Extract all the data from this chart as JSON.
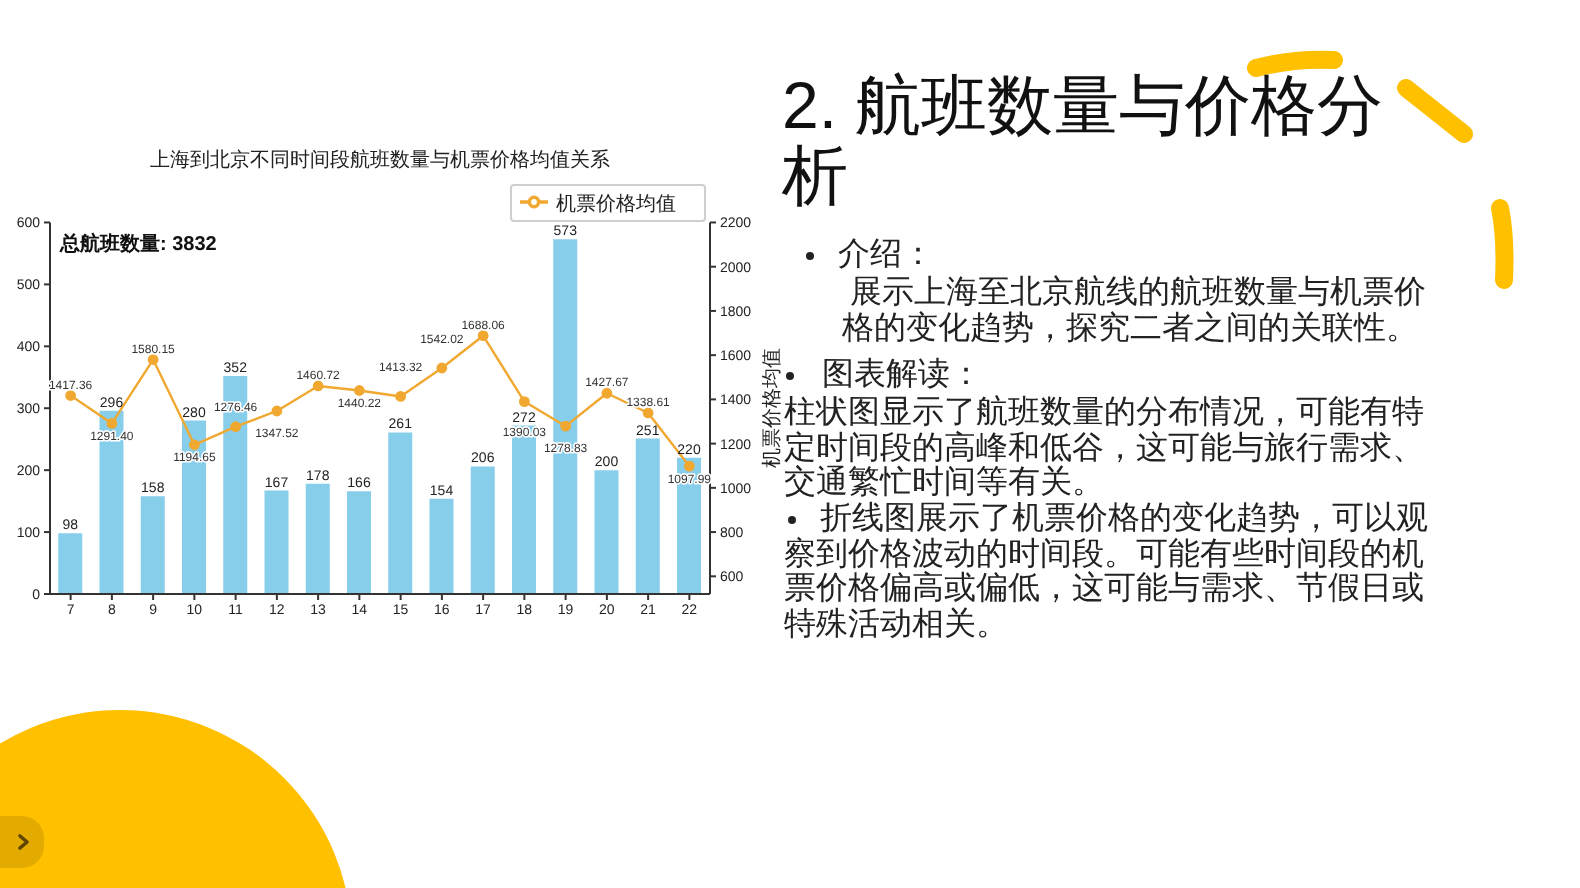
{
  "chart_data": {
    "type": "bar",
    "title": "上海到北京不同时间段航班数量与机票价格均值关系",
    "y2label": "机票价格均值",
    "annotations": [
      "总航班数量: 3832",
      "2. 航班数量与价格分析",
      "介绍：",
      "展示上海至北京航线的航班数量与机票价格的变化趋势，探究二者之间的关联性。",
      "图表解读：",
      "柱状图显示了航班数量的分布情况，可能有特定时间段的高峰和低谷，这可能与旅行需求、交通繁忙时间等有关。",
      "折线图展示了机票价格的变化趋势，可以观察到价格波动的时间段。可能有些时间段的机票价格偏高或偏低，这可能与需求、节假日或特殊活动相关。"
    ],
    "categories": [
      "7",
      "8",
      "9",
      "10",
      "11",
      "12",
      "13",
      "14",
      "15",
      "16",
      "17",
      "18",
      "19",
      "20",
      "21",
      "22"
    ],
    "series": [
      {
        "color": "#87ceeb",
        "values": [
          98,
          296,
          158,
          280,
          352,
          167,
          178,
          166,
          261,
          154,
          206,
          272,
          573,
          200,
          251,
          220
        ],
        "value_labels": [
          "98",
          "296",
          "158",
          "280",
          "352",
          "167",
          "178",
          "166",
          "261",
          "154",
          "206",
          "272",
          "573",
          "200",
          "251",
          "220"
        ]
      },
      {
        "type": "line",
        "name": "机票价格均值",
        "color": "#f0a830",
        "axis": "y2",
        "values": [
          1417.36,
          1291.4,
          1580.15,
          1194.65,
          1276.46,
          1347.52,
          1460.72,
          1440.22,
          1413.32,
          1542.02,
          1688.06,
          1390.03,
          1278.83,
          1427.67,
          1338.61,
          1097.99
        ],
        "value_labels": [
          "1417.36",
          "1291.40",
          "1580.15",
          "1194.65",
          "1276.46",
          "1347.52",
          "1460.72",
          "1440.22",
          "1413.32",
          "1542.02",
          "1688.06",
          "1390.03",
          "1278.83",
          "1427.67",
          "1338.61",
          "1097.99"
        ]
      }
    ],
    "ylim": [
      0,
      600
    ],
    "yticks": [
      0,
      100,
      200,
      300,
      400,
      500,
      600
    ],
    "y2lim": [
      520,
      2200
    ],
    "y2ticks": [
      600,
      800,
      1000,
      1200,
      1400,
      1600,
      1800,
      2000,
      2200
    ],
    "legend": "top right",
    "marker": "circle"
  }
}
